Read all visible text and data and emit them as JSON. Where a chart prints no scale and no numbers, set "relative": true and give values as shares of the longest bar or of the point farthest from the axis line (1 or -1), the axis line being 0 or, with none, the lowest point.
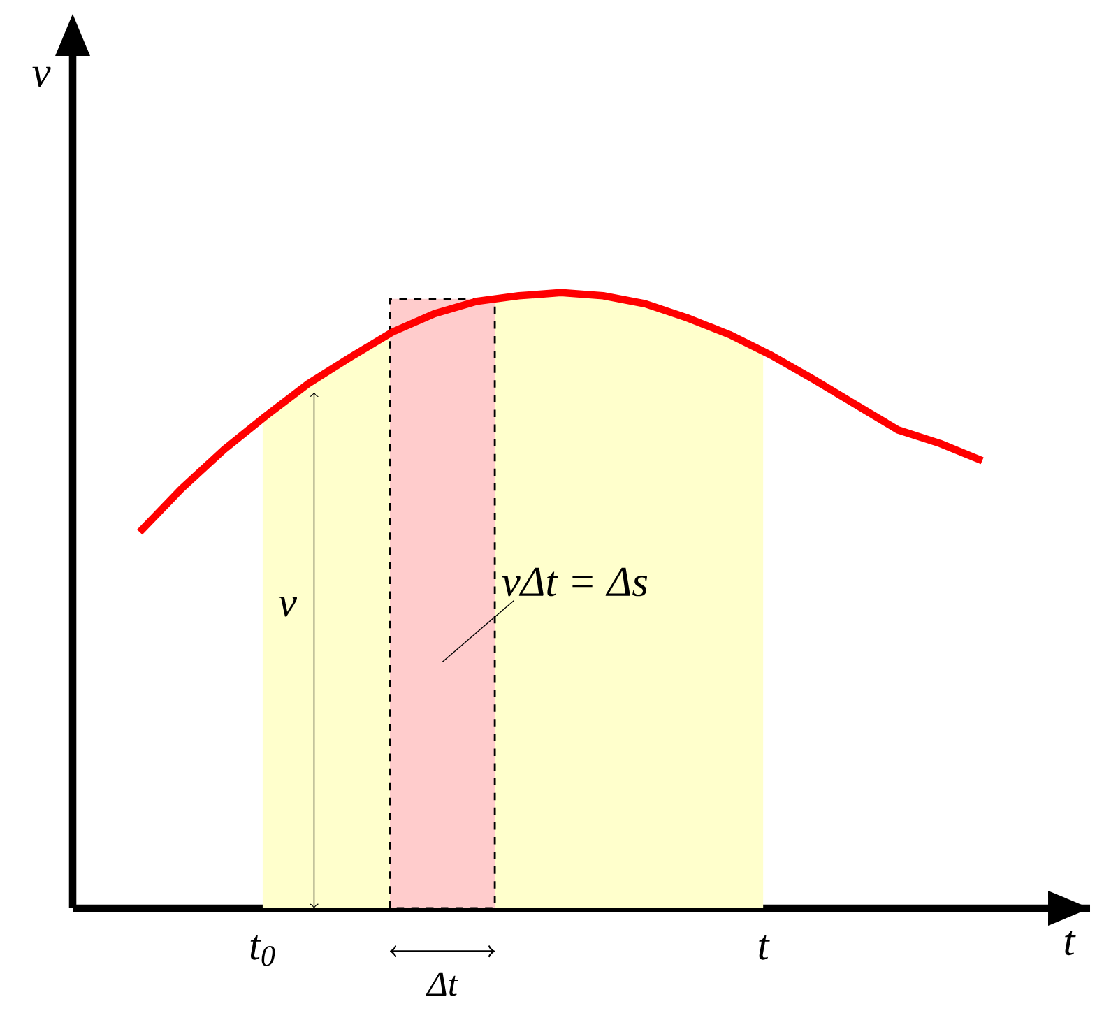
{
  "chart_data": {
    "type": "line",
    "relative": true,
    "xlabel": "t",
    "categories": [
      null,
      null,
      null,
      null,
      null,
      null,
      null,
      null,
      null,
      null,
      null,
      null,
      null,
      null,
      null,
      null,
      null,
      null,
      null,
      null,
      null
    ],
    "series": [
      {
        "color": "#ff0000",
        "values": [
          0.611,
          0.682,
          0.745,
          0.8,
          0.852,
          0.895,
          0.936,
          0.966,
          0.986,
          0.995,
          1.0,
          0.995,
          0.982,
          0.959,
          0.932,
          0.898,
          0.859,
          0.818,
          0.777,
          0.755,
          0.727
        ]
      }
    ],
    "annotations": [
      "v",
      "vΔt = Δs",
      "t$_{0}$",
      "t",
      "Δt",
      "v"
    ]
  }
}
